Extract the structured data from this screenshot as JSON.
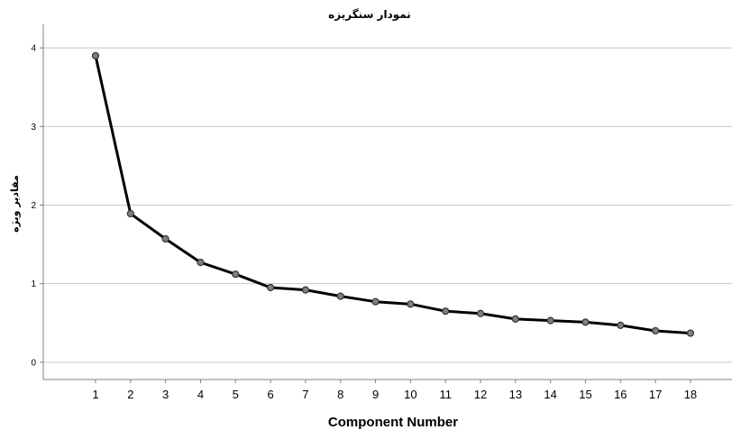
{
  "chart_data": {
    "type": "line",
    "title": "نمودار سنگریزه",
    "xlabel": "Component Number",
    "ylabel": "مقادیر ویژه",
    "categories": [
      "1",
      "2",
      "3",
      "4",
      "5",
      "6",
      "7",
      "8",
      "9",
      "10",
      "11",
      "12",
      "13",
      "14",
      "15",
      "16",
      "17",
      "18"
    ],
    "series": [
      {
        "values": [
          3.9,
          1.89,
          1.57,
          1.27,
          1.12,
          0.95,
          0.92,
          0.84,
          0.77,
          0.74,
          0.65,
          0.62,
          0.55,
          0.53,
          0.51,
          0.47,
          0.4,
          0.37
        ]
      }
    ],
    "ylim": [
      -0.22,
      4.3
    ],
    "yticks": [
      0,
      1,
      2,
      3,
      4
    ],
    "grid": true,
    "legend": "none",
    "colors": {
      "line": "#000000",
      "marker_fill": "#808080",
      "marker_stroke": "#333333",
      "grid": "#c8c8c8",
      "axis": "#808080"
    }
  }
}
